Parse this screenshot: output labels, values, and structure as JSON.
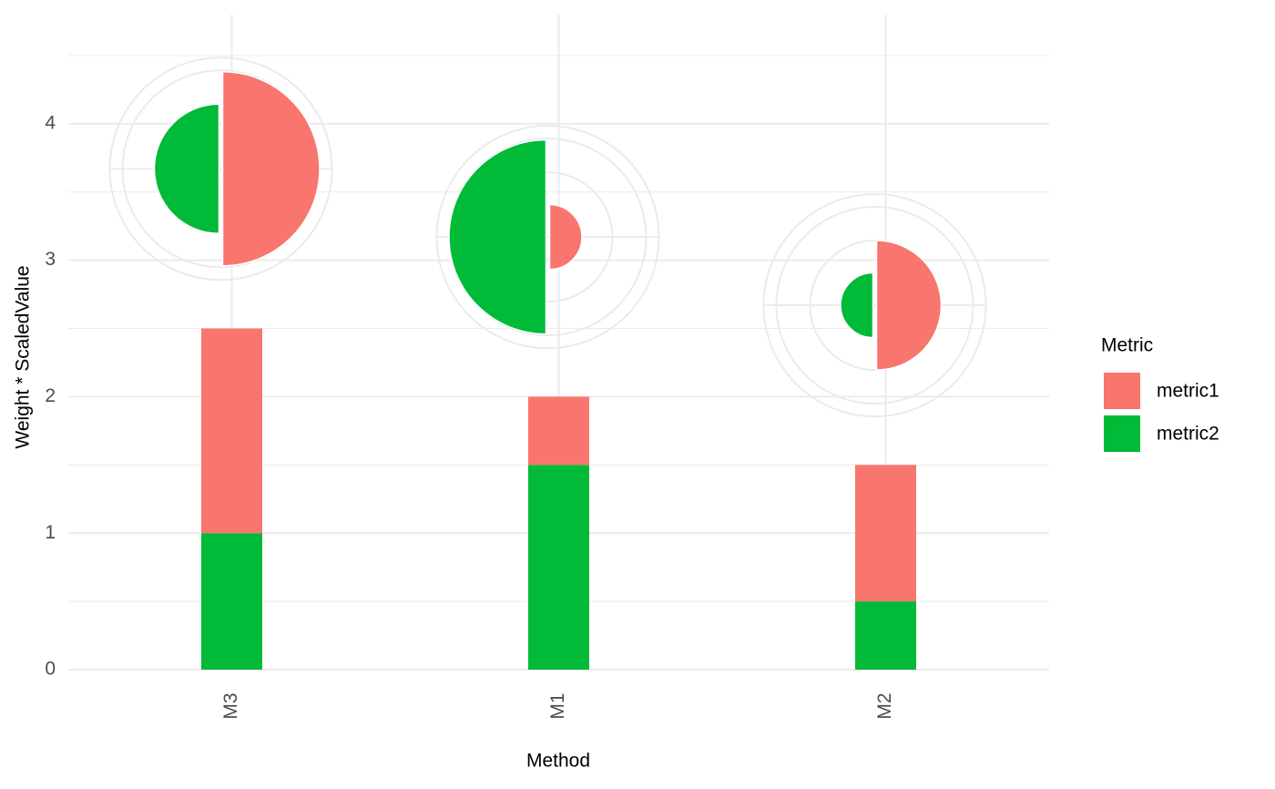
{
  "chart_data": {
    "type": "bar",
    "stacked": true,
    "categories": [
      "M3",
      "M1",
      "M2"
    ],
    "series": [
      {
        "name": "metric1",
        "color": "#F8766D",
        "values": [
          1.5,
          0.5,
          1
        ]
      },
      {
        "name": "metric2",
        "color": "#00BA38",
        "values": [
          1,
          1.5,
          0.5
        ]
      }
    ],
    "x_label": "Method",
    "y_label": "Weight * ScaledValue",
    "legend_title": "Metric",
    "ylim": [
      0,
      4.8
    ],
    "yticks": [
      0,
      1,
      2,
      3,
      4
    ],
    "grid": true,
    "legend": "right"
  }
}
